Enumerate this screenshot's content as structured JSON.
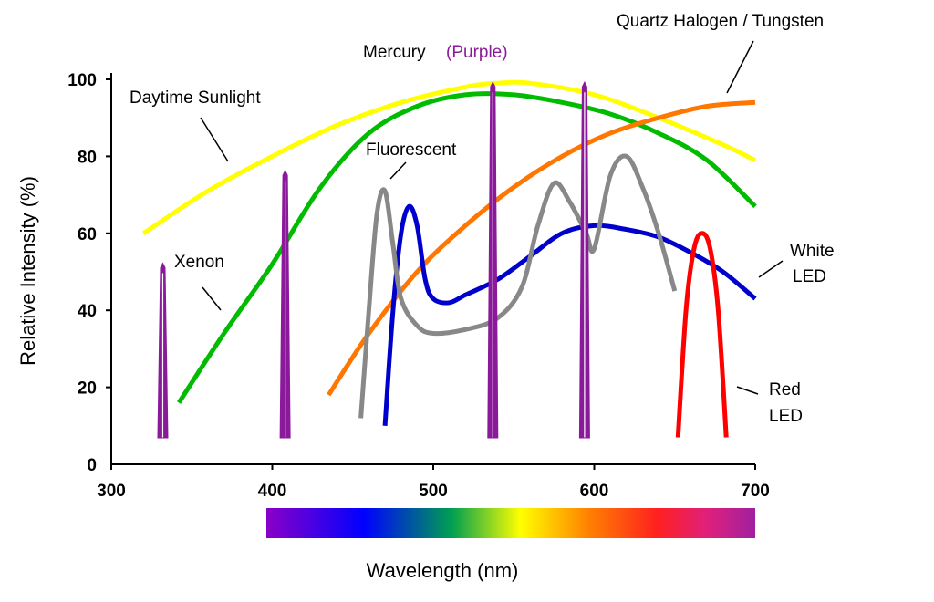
{
  "chart_data": {
    "type": "line",
    "xlabel": "Wavelength (nm)",
    "ylabel": "Relative Intensity (%)",
    "xlim": [
      300,
      700
    ],
    "ylim": [
      0,
      100
    ],
    "x_ticks": [
      "300",
      "400",
      "500",
      "600",
      "700"
    ],
    "y_ticks": [
      "0",
      "20",
      "40",
      "60",
      "80",
      "100"
    ],
    "grid": false,
    "spectrum_bar": {
      "from": 400,
      "to": 700,
      "colors": [
        "#8a00c8",
        "#0000ff",
        "#00a050",
        "#ffff00",
        "#ff8000",
        "#ff2020",
        "#e0207a",
        "#a020a0"
      ]
    },
    "series": [
      {
        "name": "Daytime Sunlight",
        "color": "#ffff00",
        "x": [
          320,
          360,
          400,
          440,
          480,
          520,
          540,
          560,
          600,
          640,
          680,
          700
        ],
        "y": [
          60,
          71,
          80,
          88,
          94,
          98,
          99,
          99,
          96,
          90,
          83,
          79
        ]
      },
      {
        "name": "Xenon",
        "color": "#00bb00",
        "x": [
          342,
          370,
          400,
          430,
          460,
          490,
          520,
          550,
          580,
          610,
          640,
          670,
          700
        ],
        "y": [
          16,
          34,
          52,
          72,
          86,
          93,
          96,
          96,
          94,
          91,
          86,
          79,
          67
        ]
      },
      {
        "name": "Quartz Halogen / Tungsten",
        "color": "#ff7700",
        "x": [
          435,
          460,
          490,
          520,
          550,
          580,
          610,
          640,
          670,
          700
        ],
        "y": [
          18,
          34,
          50,
          62,
          72,
          80,
          86,
          90,
          93,
          94
        ]
      },
      {
        "name": "White LED",
        "color": "#0000cc",
        "x": [
          470,
          475,
          480,
          485,
          490,
          495,
          500,
          510,
          520,
          540,
          560,
          580,
          600,
          620,
          640,
          660,
          680,
          700
        ],
        "y": [
          10,
          40,
          60,
          67,
          62,
          48,
          43,
          42,
          44,
          48,
          54,
          60,
          62,
          61,
          59,
          55,
          50,
          43
        ]
      },
      {
        "name": "Fluorescent",
        "color": "#888888",
        "x": [
          455,
          460,
          465,
          470,
          475,
          480,
          490,
          500,
          520,
          540,
          555,
          565,
          575,
          585,
          595,
          600,
          610,
          620,
          630,
          640,
          650
        ],
        "y": [
          12,
          40,
          65,
          71,
          57,
          43,
          36,
          34,
          35,
          38,
          46,
          62,
          73,
          68,
          60,
          56,
          75,
          80,
          72,
          60,
          45
        ]
      },
      {
        "name": "Red LED",
        "color": "#ff0000",
        "x": [
          652,
          657,
          662,
          667,
          672,
          677,
          682
        ],
        "y": [
          7,
          40,
          56,
          60,
          56,
          40,
          7
        ]
      },
      {
        "name": "Mercury (Purple)",
        "color": "#8b1a9a",
        "peaks": [
          {
            "x": 332,
            "y": 52
          },
          {
            "x": 408,
            "y": 76
          },
          {
            "x": 537,
            "y": 99
          },
          {
            "x": 594,
            "y": 99
          }
        ]
      }
    ],
    "annotations": [
      {
        "text": "Daytime Sunlight",
        "color": "#000000"
      },
      {
        "text": "Xenon",
        "color": "#000000"
      },
      {
        "text": "Mercury",
        "color": "#000000"
      },
      {
        "text": "(Purple)",
        "color": "#8b1a9a"
      },
      {
        "text": "Fluorescent",
        "color": "#000000"
      },
      {
        "text": "Quartz Halogen / Tungsten",
        "color": "#000000"
      },
      {
        "text": "White",
        "color": "#000000"
      },
      {
        "text": "LED",
        "color": "#000000"
      },
      {
        "text": "Red",
        "color": "#000000"
      },
      {
        "text": "LED",
        "color": "#000000"
      }
    ]
  }
}
